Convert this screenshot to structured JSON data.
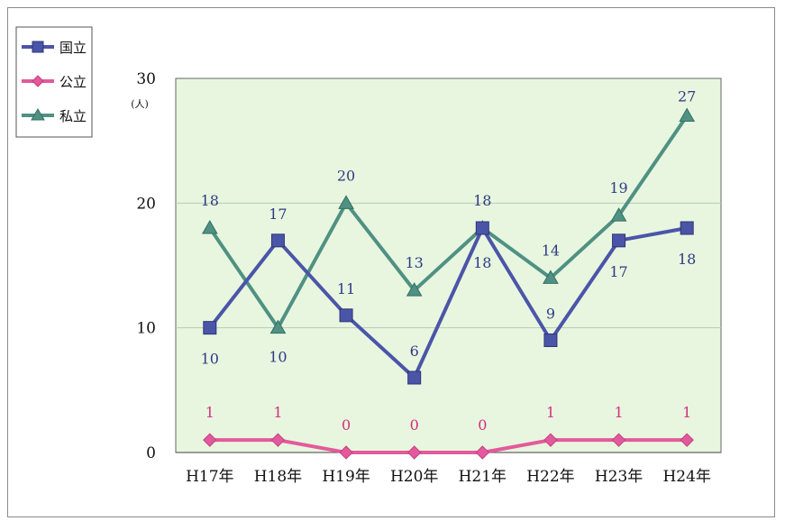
{
  "chart_data": {
    "type": "line",
    "title": "",
    "xlabel": "",
    "ylabel": "",
    "y_unit": "(人)",
    "categories": [
      "H17年",
      "H18年",
      "H19年",
      "H20年",
      "H21年",
      "H22年",
      "H23年",
      "H24年"
    ],
    "ylim": [
      0,
      30
    ],
    "yticks": [
      0,
      10,
      20,
      30
    ],
    "grid": true,
    "legend_position": "top-left",
    "series": [
      {
        "name": "国立",
        "marker": "square",
        "color": "#4b55a8",
        "label_color": "#2e3a86",
        "values": [
          10,
          17,
          11,
          6,
          18,
          9,
          17,
          18
        ]
      },
      {
        "name": "公立",
        "marker": "diamond",
        "color": "#e35a9c",
        "label_color": "#d0307d",
        "values": [
          1,
          1,
          0,
          0,
          0,
          1,
          1,
          1
        ]
      },
      {
        "name": "私立",
        "marker": "triangle",
        "color": "#4f9183",
        "label_color": "#2e3a86",
        "values": [
          18,
          10,
          20,
          13,
          18,
          14,
          19,
          27
        ]
      }
    ],
    "colors": {
      "plot_background": "#e8f6df",
      "grid": "#b8cbb4",
      "axis": "#666666"
    }
  }
}
